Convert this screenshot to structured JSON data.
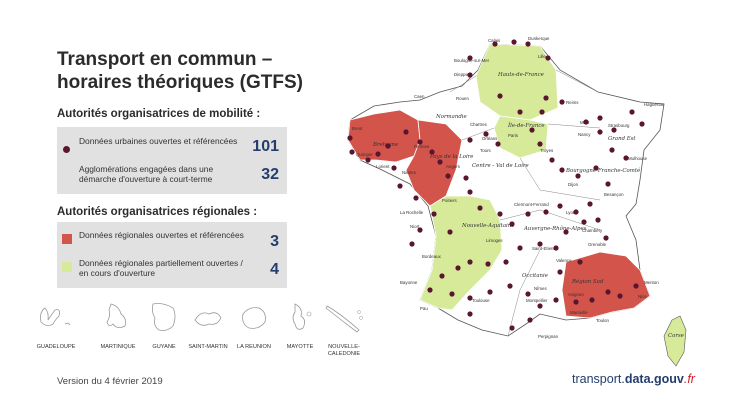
{
  "title_line1": "Transport en commun –",
  "title_line2": "horaires théoriques (GTFS)",
  "mobility": {
    "heading": "Autorités organisatrices de mobilité :",
    "rows": [
      {
        "label": "Données urbaines ouvertes et référencées",
        "value": "101"
      },
      {
        "label": "Agglomérations engagées dans une démarche d'ouverture à court-terme",
        "value": "32"
      }
    ]
  },
  "regional": {
    "heading": "Autorités organisatrices régionales :",
    "rows": [
      {
        "label": "Données régionales ouvertes et référencées",
        "value": "3",
        "color": "#d3544a"
      },
      {
        "label": "Données régionales partiellement ouvertes / en cours d'ouverture",
        "value": "4",
        "color": "#d6ea9a"
      }
    ]
  },
  "territories": [
    "GUADELOUPE",
    "MARTINIQUE",
    "GUYANE",
    "SAINT-MARTIN",
    "LA REUNION",
    "MAYOTTE",
    "NOUVELLE-CALEDONIE"
  ],
  "footer": "Version du 4 février 2019",
  "brand": {
    "a": "transport.",
    "b": "data.gouv",
    "c": ".fr"
  },
  "colors": {
    "open_region": "#d3544a",
    "partial_region": "#d6ea9a",
    "dot": "#5a1530",
    "panel": "#e1e1e1",
    "accent": "#233d6e"
  },
  "regions": [
    "Hauts-de-France",
    "Normandie",
    "Île-de-France",
    "Grand Est",
    "Bretagne",
    "Pays de la Loire",
    "Centre - Val de Loire",
    "Bourgogne-Franche-Comté",
    "Nouvelle-Aquitaine",
    "Auvergne-Rhône-Alpes",
    "Occitanie",
    "Région Sud",
    "Corse"
  ],
  "cities": [
    "Calais",
    "Dunkerque",
    "Boulogne-sur-Mer",
    "Lille",
    "Dieppe",
    "Caen",
    "Rouen",
    "Reims",
    "Metz",
    "Nancy",
    "Strasbourg",
    "Haguenau",
    "Brest",
    "Quimper",
    "Lorient",
    "Rennes",
    "Nantes",
    "Angers",
    "Tours",
    "Orléans",
    "Chartres",
    "Paris",
    "Troyes",
    "Dijon",
    "Besançon",
    "Mulhouse",
    "Poitiers",
    "La Rochelle",
    "Niort",
    "Limoges",
    "Bordeaux",
    "Clermont-Ferrand",
    "Saint-Etienne",
    "Lyon",
    "Chambéry",
    "Grenoble",
    "Valence",
    "Avignon",
    "Nîmes",
    "Montpellier",
    "Toulouse",
    "Bayonne",
    "Pau",
    "Perpignan",
    "Marseille",
    "Toulon",
    "Nice",
    "Menton"
  ]
}
